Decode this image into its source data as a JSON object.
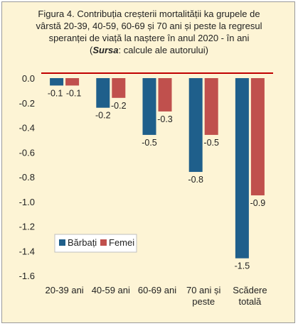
{
  "title": {
    "line1": "Figura 4. Contribuția creșterii mortalității ka grupele de",
    "line2": "vârstă 20-39, 40-59, 60-69 și 70 ani și peste la regresul",
    "line3": "speranței de viață la naștere în anul 2020 - în ani",
    "source_open": "(",
    "source_word": "Sursa",
    "source_rest": ": calcule ale autorului)"
  },
  "chart_data": {
    "type": "bar",
    "title": "Figura 4. Contribuția creșterii mortalității ka grupele de vârstă 20-39, 40-59, 60-69 și 70 ani și peste la regresul speranței de viață la naștere în anul 2020 - în ani",
    "categories": [
      [
        "20-39 ani"
      ],
      [
        "40-59 ani"
      ],
      [
        "60-69 ani"
      ],
      [
        "70 ani și",
        "peste"
      ],
      [
        "Scădere",
        "totală"
      ]
    ],
    "series": [
      {
        "name": "Bărbați",
        "color": "#1f5f8b",
        "values": [
          -0.06,
          -0.24,
          -0.46,
          -0.76,
          -1.46
        ],
        "labels": [
          "-0.1",
          "-0.2",
          "-0.5",
          "-0.8",
          "-1.5"
        ]
      },
      {
        "name": "Femei",
        "color": "#c0504d",
        "values": [
          -0.06,
          -0.16,
          -0.27,
          -0.46,
          -0.95
        ],
        "labels": [
          "-0.1",
          "-0.2",
          "-0.3",
          "-0.5",
          "-0.9"
        ]
      }
    ],
    "ylim": [
      -1.6,
      0.0
    ],
    "yticks": [
      "0.0",
      "-0.2",
      "-0.4",
      "-0.6",
      "-0.8",
      "-1.0",
      "-1.2",
      "-1.4",
      "-1.6"
    ],
    "ytick_values": [
      0.0,
      -0.2,
      -0.4,
      -0.6,
      -0.8,
      -1.0,
      -1.2,
      -1.4,
      -1.6
    ],
    "zero_line_color": "#c00000",
    "grid": false,
    "legend_position": "bottom-left"
  }
}
